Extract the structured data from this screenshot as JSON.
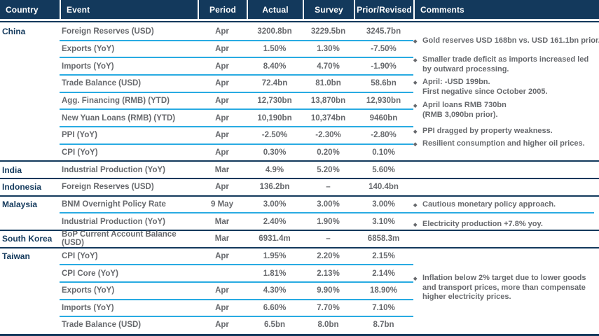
{
  "header": {
    "columns": [
      "Country",
      "Event",
      "Period",
      "Actual",
      "Survey",
      "Prior/Revised",
      "Comments"
    ]
  },
  "rows": [
    {
      "country": "China",
      "event": "Foreign Reserves (USD)",
      "period": "Apr",
      "actual": "3200.8bn",
      "survey": "3229.5bn",
      "prior": "3245.7bn"
    },
    {
      "country": "",
      "event": "Exports (YoY)",
      "period": "Apr",
      "actual": "1.50%",
      "survey": "1.30%",
      "prior": "-7.50%"
    },
    {
      "country": "",
      "event": "Imports (YoY)",
      "period": "Apr",
      "actual": "8.40%",
      "survey": "4.70%",
      "prior": "-1.90%"
    },
    {
      "country": "",
      "event": "Trade Balance (USD)",
      "period": "Apr",
      "actual": "72.4bn",
      "survey": "81.0bn",
      "prior": "58.6bn"
    },
    {
      "country": "",
      "event": "Agg. Financing (RMB) (YTD)",
      "period": "Apr",
      "actual": "12,730bn",
      "survey": "13,870bn",
      "prior": "12,930bn"
    },
    {
      "country": "",
      "event": "New Yuan Loans (RMB) (YTD)",
      "period": "Apr",
      "actual": "10,190bn",
      "survey": "10,374bn",
      "prior": "9460bn"
    },
    {
      "country": "",
      "event": "PPI (YoY)",
      "period": "Apr",
      "actual": "-2.50%",
      "survey": "-2.30%",
      "prior": "-2.80%"
    },
    {
      "country": "",
      "event": "CPI (YoY)",
      "period": "Apr",
      "actual": "0.30%",
      "survey": "0.20%",
      "prior": "0.10%"
    },
    {
      "country": "India",
      "event": "Industrial Production (YoY)",
      "period": "Mar",
      "actual": "4.9%",
      "survey": "5.20%",
      "prior": "5.60%"
    },
    {
      "country": "Indonesia",
      "event": "Foreign Reserves (USD)",
      "period": "Apr",
      "actual": "136.2bn",
      "survey": "–",
      "prior": "140.4bn"
    },
    {
      "country": "Malaysia",
      "event": "BNM Overnight Policy Rate",
      "period": "9 May",
      "actual": "3.00%",
      "survey": "3.00%",
      "prior": "3.00%"
    },
    {
      "country": "",
      "event": "Industrial Production (YoY)",
      "period": "Mar",
      "actual": "2.40%",
      "survey": "1.90%",
      "prior": "3.10%"
    },
    {
      "country": "South Korea",
      "event": "BoP Current Account Balance (USD)",
      "period": "Mar",
      "actual": "6931.4m",
      "survey": "–",
      "prior": "6858.3m"
    },
    {
      "country": "Taiwan",
      "event": "CPI (YoY)",
      "period": "Apr",
      "actual": "1.95%",
      "survey": "2.20%",
      "prior": "2.15%"
    },
    {
      "country": "",
      "event": "CPI Core (YoY)",
      "period": "",
      "actual": "1.81%",
      "survey": "2.13%",
      "prior": "2.14%"
    },
    {
      "country": "",
      "event": "Exports (YoY)",
      "period": "Apr",
      "actual": "4.30%",
      "survey": "9.90%",
      "prior": "18.90%"
    },
    {
      "country": "",
      "event": "Imports (YoY)",
      "period": "Apr",
      "actual": "6.60%",
      "survey": "7.70%",
      "prior": "7.10%"
    },
    {
      "country": "",
      "event": "Trade Balance (USD)",
      "period": "Apr",
      "actual": "6.5bn",
      "survey": "8.0bn",
      "prior": "8.7bn"
    }
  ],
  "comments": [
    {
      "lines": [
        "Gold reserves USD 168bn vs. USD 161.1bn prior."
      ]
    },
    {
      "lines": [
        "Smaller trade deficit as imports increased led",
        "by outward processing."
      ]
    },
    {
      "lines": [
        "April: -USD 199bn.",
        "First negative since October 2005."
      ]
    },
    {
      "lines": [
        "April loans RMB 730bn",
        "(RMB 3,090bn prior)."
      ]
    },
    {
      "lines": [
        "PPI dragged by property weakness."
      ]
    },
    {
      "lines": [
        "Resilient consumption and higher oil prices."
      ]
    },
    {
      "lines": [
        "Cautious monetary policy approach."
      ]
    },
    {
      "lines": [
        "Electricity production +7.8% yoy."
      ]
    },
    {
      "lines": [
        "Inflation below 2% target due to lower goods",
        "and transport prices, more than compensate",
        "higher electricity prices."
      ]
    }
  ],
  "ui": {
    "bullet": "◆"
  },
  "colors": {
    "navy": "#13395c",
    "cyan": "#29abe2",
    "text_gray": "#67696d",
    "header_text": "#ffffff"
  }
}
